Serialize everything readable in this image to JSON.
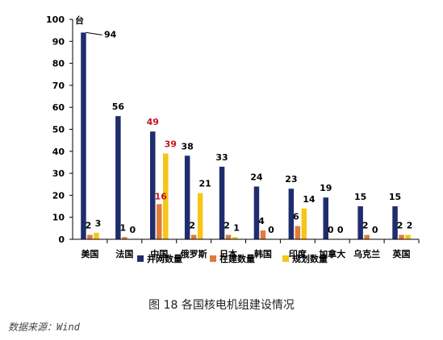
{
  "chart_data": {
    "type": "bar",
    "unit_label": "台",
    "categories": [
      "美国",
      "法国",
      "中国",
      "俄罗斯",
      "日本",
      "韩国",
      "印度",
      "加拿大",
      "乌克兰",
      "英国"
    ],
    "series": [
      {
        "name": "并网数量",
        "color": "#1f2d6e",
        "values": [
          94,
          56,
          49,
          38,
          33,
          24,
          23,
          19,
          15,
          15
        ]
      },
      {
        "name": "在建数量",
        "color": "#e07b39",
        "values": [
          2,
          1,
          16,
          2,
          2,
          4,
          6,
          0,
          2,
          2
        ]
      },
      {
        "name": "规划数量",
        "color": "#f5c518",
        "values": [
          3,
          0,
          39,
          21,
          1,
          0,
          14,
          0,
          0,
          2
        ]
      }
    ],
    "highlight_category": "中国",
    "highlight_label_color": "#c0161d",
    "ylim": [
      0,
      100
    ],
    "yticks": [
      0,
      10,
      20,
      30,
      40,
      50,
      60,
      70,
      80,
      90,
      100
    ],
    "legend_position": "bottom",
    "grid": false
  },
  "caption": "图 18  各国核电机组建设情况",
  "source": "数据来源：Wind"
}
